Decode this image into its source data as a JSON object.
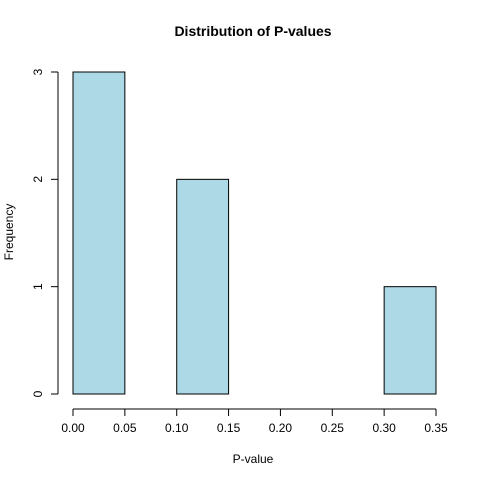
{
  "chart_data": {
    "type": "bar",
    "title": "Distribution of P-values",
    "xlabel": "P-value",
    "ylabel": "Frequency",
    "bins": [
      {
        "start": 0.0,
        "end": 0.05,
        "count": 3
      },
      {
        "start": 0.05,
        "end": 0.1,
        "count": 0
      },
      {
        "start": 0.1,
        "end": 0.15,
        "count": 2
      },
      {
        "start": 0.15,
        "end": 0.2,
        "count": 0
      },
      {
        "start": 0.2,
        "end": 0.25,
        "count": 0
      },
      {
        "start": 0.25,
        "end": 0.3,
        "count": 0
      },
      {
        "start": 0.3,
        "end": 0.35,
        "count": 1
      }
    ],
    "xlim": [
      0,
      0.35
    ],
    "ylim": [
      0,
      3
    ],
    "x_ticks": [
      "0.00",
      "0.05",
      "0.10",
      "0.15",
      "0.20",
      "0.25",
      "0.30",
      "0.35"
    ],
    "y_ticks": [
      "0",
      "1",
      "2",
      "3"
    ],
    "bar_color": "#ADD8E6",
    "grid": false,
    "legend": "none"
  }
}
